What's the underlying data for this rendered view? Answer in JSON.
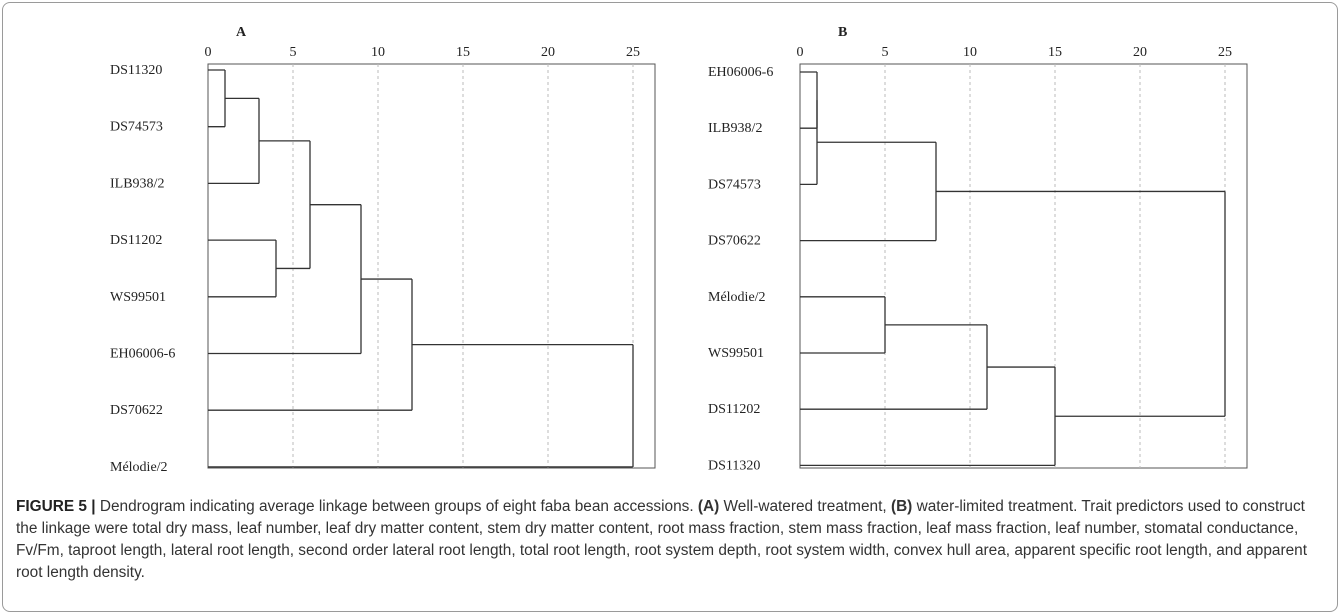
{
  "chart_data": [
    {
      "type": "dendrogram",
      "panel_label": "A",
      "x_ticks": [
        0,
        5,
        10,
        15,
        20,
        25
      ],
      "xlim": [
        0,
        25
      ],
      "grid": "vertical dashed",
      "leaves": [
        "DS11320",
        "DS74573",
        "ILB938/2",
        "DS11202",
        "WS99501",
        "EH06006-6",
        "DS70622",
        "Mélodie/2"
      ],
      "merges": [
        {
          "a": "DS11320",
          "b": "DS74573",
          "height": 1
        },
        {
          "a": "m0",
          "b": "ILB938/2",
          "height": 3
        },
        {
          "a": "DS11202",
          "b": "WS99501",
          "height": 4
        },
        {
          "a": "m1",
          "b": "m2",
          "height": 6
        },
        {
          "a": "m3",
          "b": "EH06006-6",
          "height": 9
        },
        {
          "a": "m4",
          "b": "DS70622",
          "height": 12
        },
        {
          "a": "m5",
          "b": "Mélodie/2",
          "height": 25
        }
      ]
    },
    {
      "type": "dendrogram",
      "panel_label": "B",
      "x_ticks": [
        0,
        5,
        10,
        15,
        20,
        25
      ],
      "xlim": [
        0,
        25
      ],
      "grid": "vertical dashed",
      "leaves": [
        "EH06006-6",
        "ILB938/2",
        "DS74573",
        "DS70622",
        "Mélodie/2",
        "WS99501",
        "DS11202",
        "DS11320"
      ],
      "merges": [
        {
          "a": "EH06006-6",
          "b": "ILB938/2",
          "height": 1
        },
        {
          "a": "m0",
          "b": "DS74573",
          "height": 1
        },
        {
          "a": "m1",
          "b": "DS70622",
          "height": 8
        },
        {
          "a": "Mélodie/2",
          "b": "WS99501",
          "height": 5
        },
        {
          "a": "m3",
          "b": "DS11202",
          "height": 11
        },
        {
          "a": "m4",
          "b": "DS11320",
          "height": 15
        },
        {
          "a": "m2",
          "b": "m5",
          "height": 25
        }
      ]
    }
  ],
  "caption": {
    "figure_label": "FIGURE 5 |",
    "intro": " Dendrogram indicating average linkage between groups of eight faba bean accessions. ",
    "a_label": "(A)",
    "a_text": " Well-watered treatment, ",
    "b_label": "(B)",
    "b_text": " water-limited treatment. Trait predictors used to construct the linkage were total dry mass, leaf number, leaf dry matter content, stem dry matter content, root mass fraction, stem mass fraction, leaf mass fraction, leaf number, stomatal conductance, Fv/Fm, taproot length, lateral root length, second order lateral root length, total root length, root system depth, root system width, convex hull area, apparent specific root length, and apparent root length density."
  }
}
